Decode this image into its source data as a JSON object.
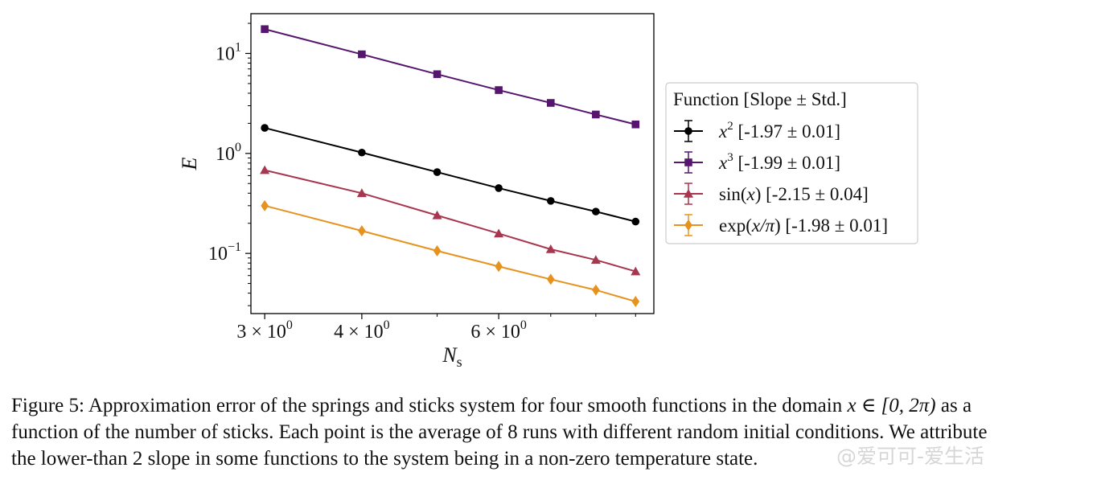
{
  "chart_data": {
    "type": "line",
    "xscale": "log",
    "yscale": "log",
    "xlim": [
      2.88,
      9.5
    ],
    "ylim": [
      0.025,
      25
    ],
    "xlabel": {
      "main": "N",
      "sub": "s"
    },
    "ylabel": "E",
    "x_ticks": [
      {
        "value": 3,
        "label_mantissa": "3 × 10",
        "label_exp": "0"
      },
      {
        "value": 4,
        "label_mantissa": "4 × 10",
        "label_exp": "0"
      },
      {
        "value": 6,
        "label_mantissa": "6 × 10",
        "label_exp": "0"
      }
    ],
    "x_minor_ticks": [
      5,
      7,
      8,
      9
    ],
    "y_ticks": [
      {
        "value": 0.1,
        "label_base": "10",
        "label_exp": "−1"
      },
      {
        "value": 1,
        "label_base": "10",
        "label_exp": "0"
      },
      {
        "value": 10,
        "label_base": "10",
        "label_exp": "1"
      }
    ],
    "x": [
      3,
      4,
      5,
      6,
      7,
      8,
      9
    ],
    "series": [
      {
        "name_math": "x",
        "name_sup": "2",
        "name_rest": " [-1.97 ± 0.01]",
        "color": "#000000",
        "marker": "circle",
        "values": [
          1.8,
          1.02,
          0.65,
          0.45,
          0.335,
          0.262,
          0.208
        ]
      },
      {
        "name_math": "x",
        "name_sup": "3",
        "name_rest": " [-1.99 ± 0.01]",
        "color": "#56166e",
        "marker": "square",
        "values": [
          17.5,
          9.8,
          6.2,
          4.3,
          3.2,
          2.45,
          1.95
        ]
      },
      {
        "name_prefix": "sin(",
        "name_math": "x",
        "name_sup": "",
        "name_rest": ") [-2.15 ± 0.04]",
        "color": "#a8364e",
        "marker": "triangle",
        "values": [
          0.68,
          0.4,
          0.24,
          0.158,
          0.11,
          0.086,
          0.066
        ]
      },
      {
        "name_prefix": "exp(",
        "name_math": "x/π",
        "name_sup": "",
        "name_rest": ") [-1.98 ± 0.01]",
        "color": "#e8921e",
        "marker": "diamond",
        "values": [
          0.3,
          0.168,
          0.106,
          0.074,
          0.055,
          0.043,
          0.033
        ]
      }
    ],
    "legend": {
      "title": "Function [Slope ± Std.]",
      "position": "right-outside"
    },
    "grid": false
  },
  "caption": {
    "line1_a": "Figure 5: Approximation error of the springs and sticks system for four smooth functions in the domain ",
    "line1_math": "x ∈ [0, 2π)",
    "line1_b": " as a",
    "line2": "function of the number of sticks. Each point is the average of 8 runs with different random initial conditions. We attribute",
    "line3": "the lower-than 2 slope in some functions to the system being in a non-zero temperature state."
  },
  "watermark": "@爱可可-爱生活"
}
